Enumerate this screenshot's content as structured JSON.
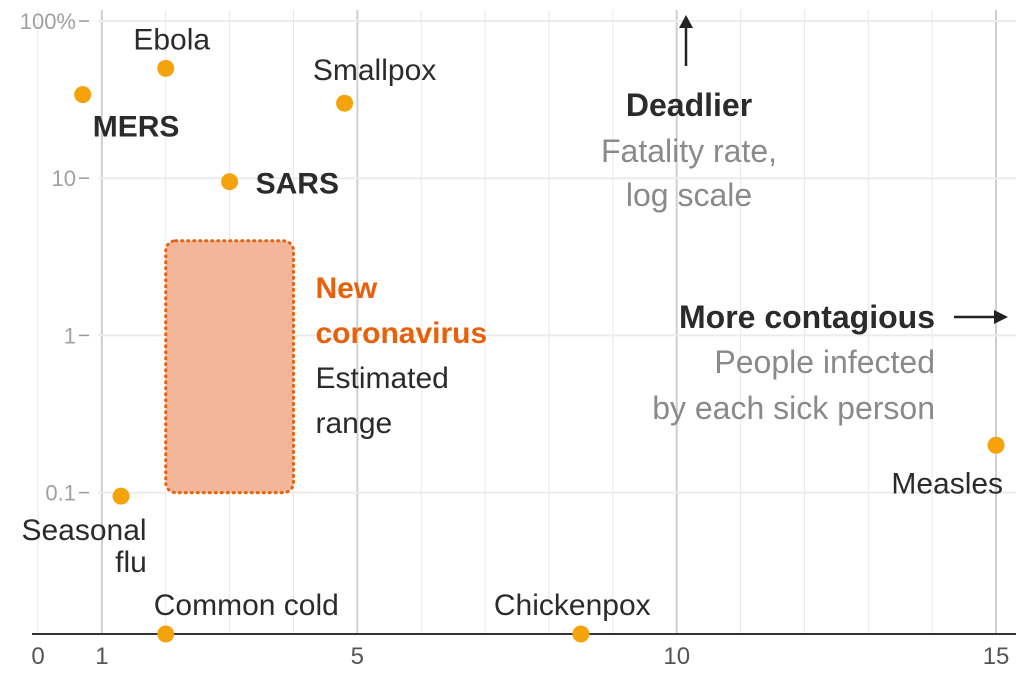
{
  "chart_data": {
    "type": "scatter",
    "title": "",
    "x_axis": {
      "range": [
        0,
        15
      ],
      "ticks": [
        0,
        1,
        5,
        10,
        15
      ],
      "tick_labels": [
        "0",
        "1",
        "5",
        "10",
        "15"
      ],
      "label": "More contagious",
      "label_note": [
        "People infected",
        "by each sick person"
      ]
    },
    "y_axis": {
      "scale": "log",
      "range": [
        0.01,
        100
      ],
      "ticks": [
        0.1,
        1,
        10,
        100
      ],
      "tick_labels": [
        "0.1",
        "1",
        "10",
        "100%"
      ],
      "label": "Deadlier",
      "label_note": [
        "Fatality rate,",
        "log scale"
      ]
    },
    "grid": true,
    "points": [
      {
        "name": "Ebola",
        "x": 2.0,
        "y": 50,
        "emphasis": false
      },
      {
        "name": "MERS",
        "x": 0.7,
        "y": 34,
        "emphasis": true
      },
      {
        "name": "Smallpox",
        "x": 4.8,
        "y": 30,
        "emphasis": false
      },
      {
        "name": "SARS",
        "x": 3.0,
        "y": 9.5,
        "emphasis": true
      },
      {
        "name": "Seasonal flu",
        "x": 1.3,
        "y": 0.095,
        "emphasis": false
      },
      {
        "name": "Common cold",
        "x": 2.0,
        "y": null,
        "emphasis": false
      },
      {
        "name": "Chickenpox",
        "x": 8.5,
        "y": null,
        "emphasis": false
      },
      {
        "name": "Measles",
        "x": 15,
        "y": 0.2,
        "emphasis": false
      }
    ],
    "ranges": [
      {
        "name": "New coronavirus",
        "note": [
          "Estimated",
          "range"
        ],
        "x": [
          2.0,
          4.0
        ],
        "y": [
          0.1,
          4
        ]
      }
    ],
    "colors": {
      "point": "#f5a30a",
      "range_fill": "#f2b79a",
      "range_border": "#e8600a",
      "range_title": "#e8600a"
    }
  }
}
